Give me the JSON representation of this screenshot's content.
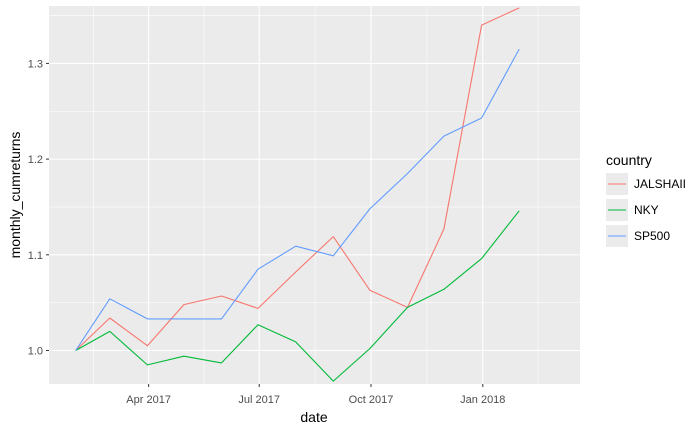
{
  "chart_data": {
    "type": "line",
    "xlabel": "date",
    "ylabel": "monthly_cumreturns",
    "x": [
      "2017-01-31",
      "2017-02-28",
      "2017-03-31",
      "2017-04-30",
      "2017-05-31",
      "2017-06-30",
      "2017-07-31",
      "2017-08-31",
      "2017-09-30",
      "2017-10-31",
      "2017-11-30",
      "2017-12-31",
      "2018-01-31",
      "2018-02-28"
    ],
    "x_ticks": [
      {
        "date": "2017-04-01",
        "label": "Apr 2017"
      },
      {
        "date": "2017-07-01",
        "label": "Jul 2017"
      },
      {
        "date": "2017-10-01",
        "label": "Oct 2017"
      },
      {
        "date": "2018-01-01",
        "label": "Jan 2018"
      }
    ],
    "xlim": [
      "2017-01-09",
      "2018-03-22"
    ],
    "ylim": [
      0.965,
      1.36
    ],
    "y_ticks": [
      1.0,
      1.1,
      1.2,
      1.3
    ],
    "y_tick_labels": [
      "1.0",
      "1.1",
      "1.2",
      "1.3"
    ],
    "grid": true,
    "legend": {
      "title": "country",
      "position": "right"
    },
    "series": [
      {
        "name": "JALSHAII",
        "color": "#F8766D",
        "values": [
          1.0,
          1.034,
          1.005,
          1.048,
          1.057,
          1.044,
          1.082,
          1.119,
          1.063,
          1.045,
          1.127,
          1.34,
          1.358,
          null
        ]
      },
      {
        "name": "NKY",
        "color": "#00BA38",
        "values": [
          1.0,
          1.02,
          0.985,
          0.994,
          0.987,
          1.027,
          1.009,
          0.968,
          1.002,
          1.045,
          1.064,
          1.096,
          1.146,
          null
        ]
      },
      {
        "name": "SP500",
        "color": "#619CFF",
        "values": [
          1.0,
          1.054,
          1.033,
          1.033,
          1.033,
          1.085,
          1.109,
          1.099,
          1.148,
          1.185,
          1.224,
          1.243,
          1.315,
          null
        ]
      }
    ]
  }
}
